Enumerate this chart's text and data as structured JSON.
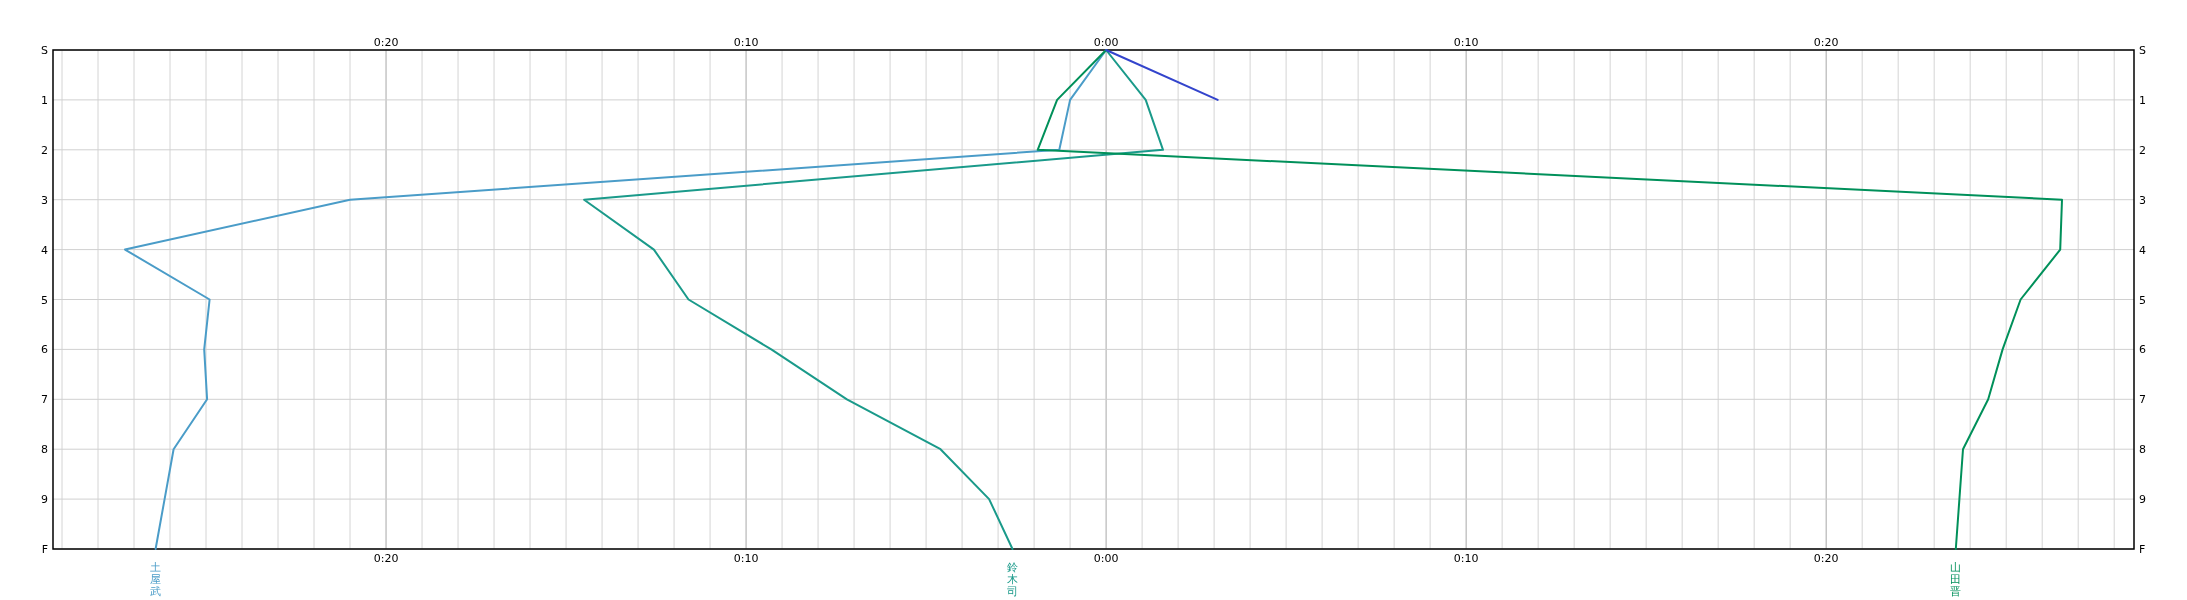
{
  "chart_data": {
    "type": "line",
    "orientation": "horizontal",
    "legend": false,
    "grid": true,
    "categories": [
      "S",
      "1",
      "2",
      "3",
      "4",
      "5",
      "6",
      "7",
      "8",
      "9",
      "F"
    ],
    "xlim": [
      -29.25,
      28.55
    ],
    "xticks": [
      {
        "value": -29,
        "label": null
      },
      {
        "value": -28,
        "label": null
      },
      {
        "value": -27,
        "label": null
      },
      {
        "value": -26,
        "label": null
      },
      {
        "value": -25,
        "label": null
      },
      {
        "value": -24,
        "label": null
      },
      {
        "value": -23,
        "label": null
      },
      {
        "value": -22,
        "label": null
      },
      {
        "value": -21,
        "label": null
      },
      {
        "value": -20,
        "label": "0:20"
      },
      {
        "value": -19,
        "label": null
      },
      {
        "value": -18,
        "label": null
      },
      {
        "value": -17,
        "label": null
      },
      {
        "value": -16,
        "label": null
      },
      {
        "value": -15,
        "label": null
      },
      {
        "value": -14,
        "label": null
      },
      {
        "value": -13,
        "label": null
      },
      {
        "value": -12,
        "label": null
      },
      {
        "value": -11,
        "label": null
      },
      {
        "value": -10,
        "label": "0:10"
      },
      {
        "value": -9,
        "label": null
      },
      {
        "value": -8,
        "label": null
      },
      {
        "value": -7,
        "label": null
      },
      {
        "value": -6,
        "label": null
      },
      {
        "value": -5,
        "label": null
      },
      {
        "value": -4,
        "label": null
      },
      {
        "value": -3,
        "label": null
      },
      {
        "value": -2,
        "label": null
      },
      {
        "value": -1,
        "label": null
      },
      {
        "value": 0,
        "label": "0:00"
      },
      {
        "value": 1,
        "label": null
      },
      {
        "value": 2,
        "label": null
      },
      {
        "value": 3,
        "label": null
      },
      {
        "value": 4,
        "label": null
      },
      {
        "value": 5,
        "label": null
      },
      {
        "value": 6,
        "label": null
      },
      {
        "value": 7,
        "label": null
      },
      {
        "value": 8,
        "label": null
      },
      {
        "value": 9,
        "label": null
      },
      {
        "value": 10,
        "label": "0:10"
      },
      {
        "value": 11,
        "label": null
      },
      {
        "value": 12,
        "label": null
      },
      {
        "value": 13,
        "label": null
      },
      {
        "value": 14,
        "label": null
      },
      {
        "value": 15,
        "label": null
      },
      {
        "value": 16,
        "label": null
      },
      {
        "value": 17,
        "label": null
      },
      {
        "value": 18,
        "label": null
      },
      {
        "value": 19,
        "label": null
      },
      {
        "value": 20,
        "label": "0:20"
      },
      {
        "value": 21,
        "label": null
      },
      {
        "value": 22,
        "label": null
      },
      {
        "value": 23,
        "label": null
      },
      {
        "value": 24,
        "label": null
      },
      {
        "value": 25,
        "label": null
      },
      {
        "value": 26,
        "label": null
      },
      {
        "value": 27,
        "label": null
      },
      {
        "value": 28,
        "label": null
      }
    ],
    "x2lim": [
      -29.25,
      28.55
    ],
    "x2ticks": [
      {
        "value": -20,
        "label": "0:20"
      },
      {
        "value": -10,
        "label": "0:10"
      },
      {
        "value": 0,
        "label": "0:00"
      },
      {
        "value": 10,
        "label": "0:10"
      },
      {
        "value": 20,
        "label": "0:20"
      }
    ],
    "series": [
      {
        "name": "土屋武",
        "color": "#4a9cc8",
        "values": [
          0,
          -1.0,
          -1.3,
          -21.0,
          -27.25,
          -24.9,
          -25.05,
          -24.97,
          -25.9,
          -26.15,
          -26.4
        ]
      },
      {
        "name": "鈴木司",
        "color": "#1a9a8a",
        "values": [
          0,
          1.1,
          1.58,
          -14.5,
          -12.56,
          -11.6,
          -9.3,
          -7.2,
          -4.6,
          -3.25,
          -2.6
        ]
      },
      {
        "name": "山田晋",
        "color": "#00905a",
        "values": [
          0,
          -1.36,
          -1.9,
          26.55,
          26.5,
          25.4,
          24.9,
          24.5,
          23.8,
          23.7,
          23.6
        ]
      },
      {
        "color": "#3344cc",
        "values": [
          0,
          3.1,
          null,
          null,
          null,
          null,
          null,
          null,
          null,
          null,
          null
        ]
      }
    ]
  }
}
